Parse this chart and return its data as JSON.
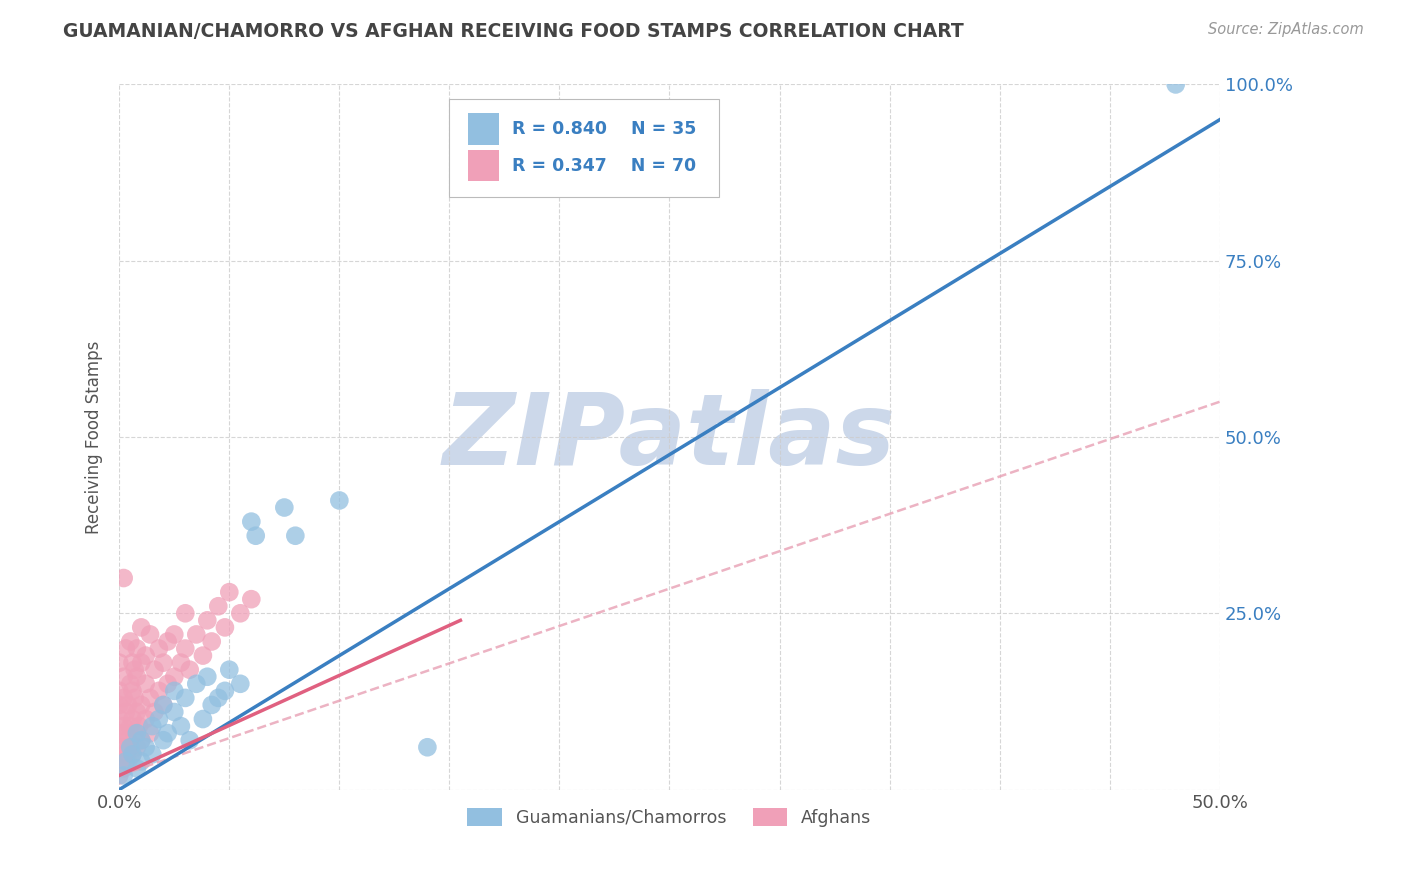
{
  "title": "GUAMANIAN/CHAMORRO VS AFGHAN RECEIVING FOOD STAMPS CORRELATION CHART",
  "source": "Source: ZipAtlas.com",
  "ylabel": "Receiving Food Stamps",
  "xlim": [
    0.0,
    0.5
  ],
  "ylim": [
    0.0,
    1.0
  ],
  "xtick_positions": [
    0.0,
    0.05,
    0.1,
    0.15,
    0.2,
    0.25,
    0.3,
    0.35,
    0.4,
    0.45,
    0.5
  ],
  "xticklabels": [
    "0.0%",
    "",
    "",
    "",
    "",
    "",
    "",
    "",
    "",
    "",
    "50.0%"
  ],
  "ytick_positions": [
    0.0,
    0.25,
    0.5,
    0.75,
    1.0
  ],
  "yticklabels_right": [
    "",
    "25.0%",
    "50.0%",
    "75.0%",
    "100.0%"
  ],
  "guamanian_color": "#92bfe0",
  "afghan_color": "#f0a0b8",
  "blue_line_color": "#3a7fc1",
  "pink_solid_color": "#e06080",
  "pink_dash_color": "#e8a0b4",
  "watermark": "ZIPatlas",
  "watermark_color": "#ccd8ea",
  "legend_label1": "Guamanians/Chamorros",
  "legend_label2": "Afghans",
  "blue_line": {
    "x0": 0.0,
    "y0": 0.0,
    "x1": 0.5,
    "y1": 0.95
  },
  "pink_solid_line": {
    "x0": 0.0,
    "y0": 0.02,
    "x1": 0.155,
    "y1": 0.24
  },
  "pink_dash_line": {
    "x0": 0.0,
    "y0": 0.02,
    "x1": 0.5,
    "y1": 0.55
  },
  "guamanian_points": [
    [
      0.002,
      0.02
    ],
    [
      0.003,
      0.04
    ],
    [
      0.005,
      0.06
    ],
    [
      0.006,
      0.05
    ],
    [
      0.008,
      0.03
    ],
    [
      0.008,
      0.08
    ],
    [
      0.01,
      0.04
    ],
    [
      0.01,
      0.07
    ],
    [
      0.012,
      0.06
    ],
    [
      0.015,
      0.09
    ],
    [
      0.015,
      0.05
    ],
    [
      0.018,
      0.1
    ],
    [
      0.02,
      0.07
    ],
    [
      0.02,
      0.12
    ],
    [
      0.022,
      0.08
    ],
    [
      0.025,
      0.11
    ],
    [
      0.025,
      0.14
    ],
    [
      0.028,
      0.09
    ],
    [
      0.03,
      0.13
    ],
    [
      0.032,
      0.07
    ],
    [
      0.035,
      0.15
    ],
    [
      0.038,
      0.1
    ],
    [
      0.04,
      0.16
    ],
    [
      0.042,
      0.12
    ],
    [
      0.045,
      0.13
    ],
    [
      0.048,
      0.14
    ],
    [
      0.05,
      0.17
    ],
    [
      0.055,
      0.15
    ],
    [
      0.06,
      0.38
    ],
    [
      0.062,
      0.36
    ],
    [
      0.075,
      0.4
    ],
    [
      0.08,
      0.36
    ],
    [
      0.1,
      0.41
    ],
    [
      0.14,
      0.06
    ],
    [
      0.48,
      1.0
    ]
  ],
  "afghan_points": [
    [
      0.0,
      0.02
    ],
    [
      0.0,
      0.04
    ],
    [
      0.0,
      0.06
    ],
    [
      0.0,
      0.08
    ],
    [
      0.0,
      0.1
    ],
    [
      0.0,
      0.12
    ],
    [
      0.0,
      0.14
    ],
    [
      0.0,
      0.18
    ],
    [
      0.002,
      0.03
    ],
    [
      0.002,
      0.06
    ],
    [
      0.002,
      0.09
    ],
    [
      0.002,
      0.13
    ],
    [
      0.002,
      0.16
    ],
    [
      0.003,
      0.05
    ],
    [
      0.003,
      0.08
    ],
    [
      0.003,
      0.11
    ],
    [
      0.003,
      0.2
    ],
    [
      0.004,
      0.04
    ],
    [
      0.004,
      0.07
    ],
    [
      0.004,
      0.12
    ],
    [
      0.005,
      0.06
    ],
    [
      0.005,
      0.09
    ],
    [
      0.005,
      0.15
    ],
    [
      0.005,
      0.21
    ],
    [
      0.006,
      0.05
    ],
    [
      0.006,
      0.1
    ],
    [
      0.006,
      0.14
    ],
    [
      0.006,
      0.18
    ],
    [
      0.007,
      0.08
    ],
    [
      0.007,
      0.13
    ],
    [
      0.007,
      0.17
    ],
    [
      0.008,
      0.06
    ],
    [
      0.008,
      0.11
    ],
    [
      0.008,
      0.16
    ],
    [
      0.008,
      0.2
    ],
    [
      0.009,
      0.09
    ],
    [
      0.01,
      0.07
    ],
    [
      0.01,
      0.12
    ],
    [
      0.01,
      0.18
    ],
    [
      0.01,
      0.23
    ],
    [
      0.012,
      0.1
    ],
    [
      0.012,
      0.15
    ],
    [
      0.012,
      0.19
    ],
    [
      0.014,
      0.08
    ],
    [
      0.014,
      0.13
    ],
    [
      0.014,
      0.22
    ],
    [
      0.016,
      0.11
    ],
    [
      0.016,
      0.17
    ],
    [
      0.018,
      0.14
    ],
    [
      0.018,
      0.2
    ],
    [
      0.02,
      0.12
    ],
    [
      0.02,
      0.18
    ],
    [
      0.022,
      0.15
    ],
    [
      0.022,
      0.21
    ],
    [
      0.025,
      0.16
    ],
    [
      0.025,
      0.22
    ],
    [
      0.028,
      0.18
    ],
    [
      0.03,
      0.2
    ],
    [
      0.03,
      0.25
    ],
    [
      0.032,
      0.17
    ],
    [
      0.035,
      0.22
    ],
    [
      0.038,
      0.19
    ],
    [
      0.04,
      0.24
    ],
    [
      0.042,
      0.21
    ],
    [
      0.045,
      0.26
    ],
    [
      0.048,
      0.23
    ],
    [
      0.05,
      0.28
    ],
    [
      0.055,
      0.25
    ],
    [
      0.002,
      0.3
    ],
    [
      0.06,
      0.27
    ]
  ]
}
